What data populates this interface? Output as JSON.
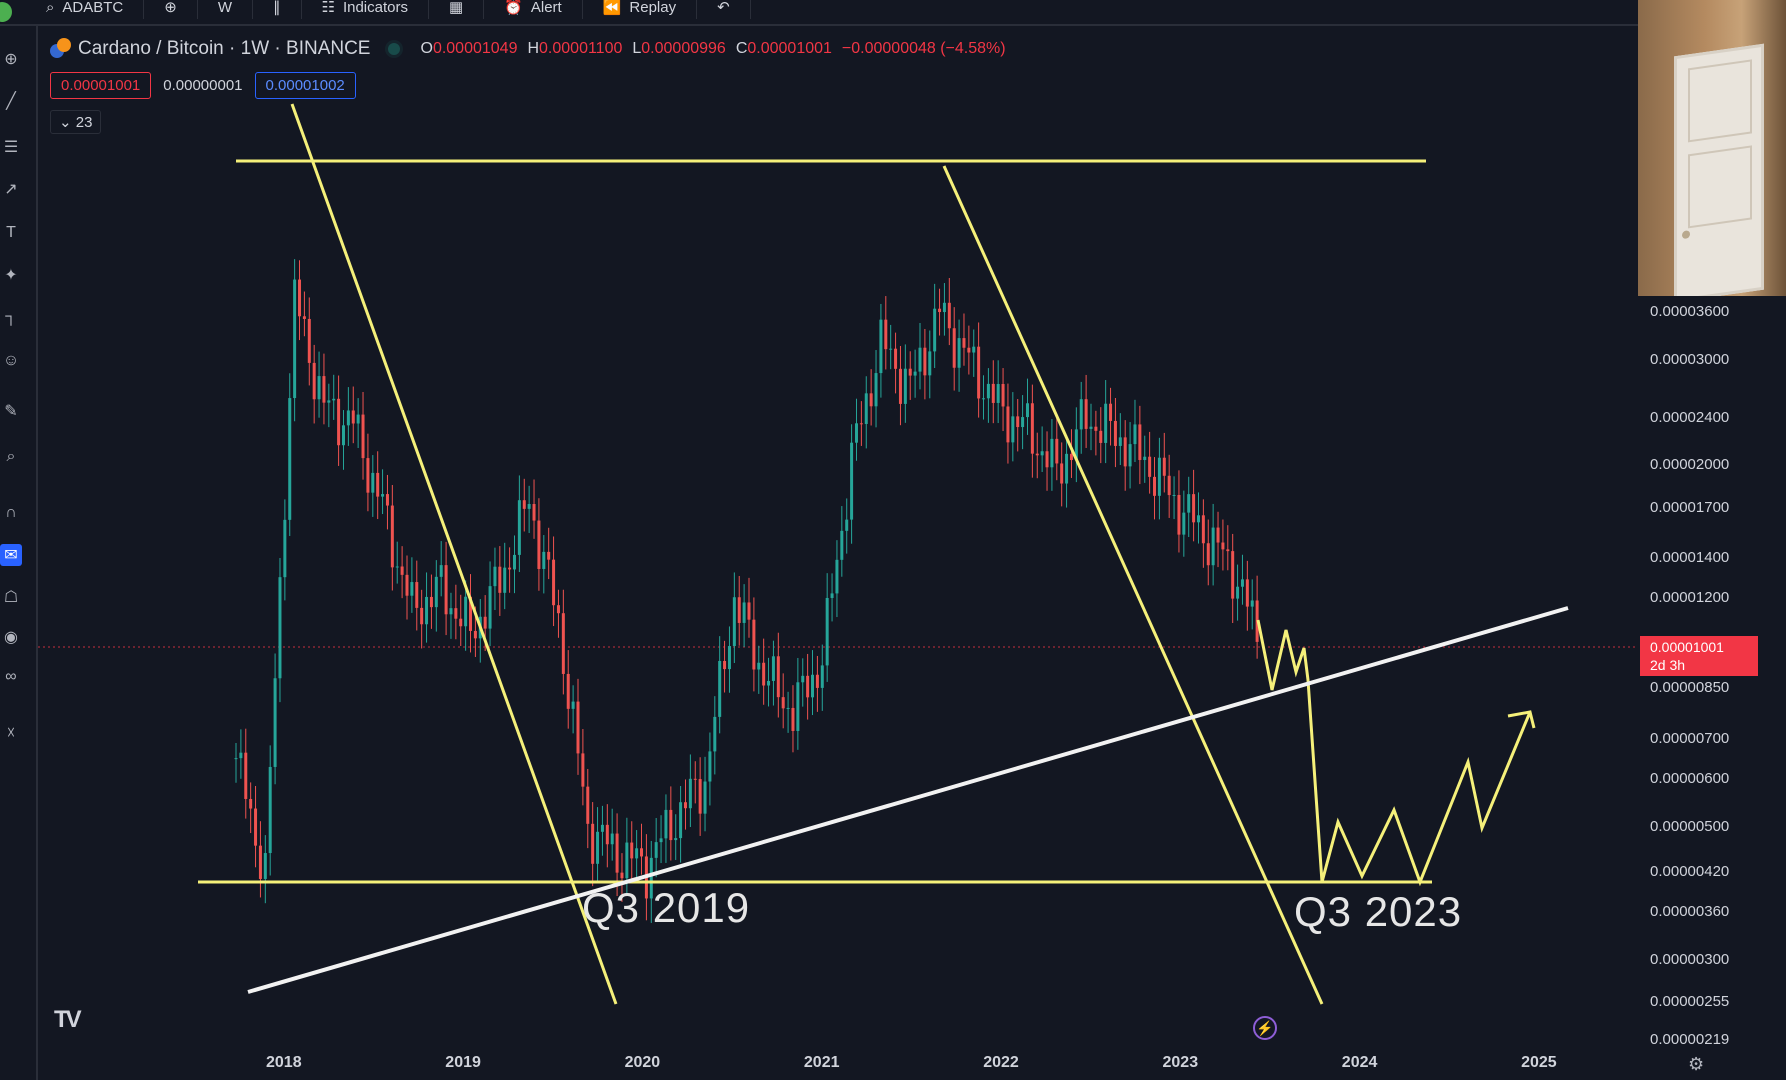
{
  "toolbar": {
    "symbol": "ADABTC",
    "interval": "W",
    "indicators_label": "Indicators",
    "alert_label": "Alert",
    "replay_label": "Replay"
  },
  "legend": {
    "title": "Cardano / Bitcoin · 1W · BINANCE",
    "open_key": "O",
    "open": "0.00001049",
    "high_key": "H",
    "high": "0.00001100",
    "low_key": "L",
    "low": "0.00000996",
    "close_key": "C",
    "close": "0.00001001",
    "change": "−0.00000048 (−4.58%)",
    "sell_price": "0.00001001",
    "spread": "0.00000001",
    "buy_price": "0.00001002",
    "collapsed_count": "23"
  },
  "price_axis": {
    "labels": [
      "0.00003600",
      "0.00003000",
      "0.00002400",
      "0.00002000",
      "0.00001700",
      "0.00001400",
      "0.00001200",
      "0.00000850",
      "0.00000700",
      "0.00000600",
      "0.00000500",
      "0.00000420",
      "0.00000360",
      "0.00000300",
      "0.00000255",
      "0.00000219"
    ],
    "current_price": "0.00001001",
    "countdown": "2d 3h"
  },
  "time_axis": {
    "labels": [
      "2018",
      "2019",
      "2020",
      "2021",
      "2022",
      "2023",
      "2024",
      "2025"
    ]
  },
  "annotations": {
    "q3_2019": "Q3 2019",
    "q3_2023": "Q3 2023"
  },
  "colors": {
    "background": "#131722",
    "up_candle": "#26a69a",
    "down_candle": "#ef5350",
    "drawing_yellow": "#f5f07a",
    "drawing_white": "#ffffff",
    "price_tag": "#f23645"
  },
  "chart_data": {
    "type": "candlestick",
    "title": "Cardano / Bitcoin · 1W · BINANCE",
    "scale": "log",
    "x": [
      "2017-10",
      "2017-12",
      "2018-01",
      "2018-03",
      "2018-05",
      "2018-07",
      "2018-09",
      "2018-11",
      "2019-01",
      "2019-03",
      "2019-05",
      "2019-07",
      "2019-09",
      "2019-11",
      "2020-01",
      "2020-03",
      "2020-05",
      "2020-07",
      "2020-09",
      "2020-11",
      "2021-01",
      "2021-03",
      "2021-05",
      "2021-07",
      "2021-09",
      "2021-11",
      "2022-01",
      "2022-03",
      "2022-05",
      "2022-07",
      "2022-09",
      "2022-11",
      "2023-01",
      "2023-03",
      "2023-05",
      "2023-06"
    ],
    "close": [
      6.5e-06,
      4.2e-06,
      3.8e-05,
      2.5e-05,
      2.35e-05,
      1.7e-05,
      1.15e-05,
      1.25e-05,
      1.05e-05,
      1.28e-05,
      1.75e-05,
      1.1e-05,
      5e-06,
      4.5e-06,
      4.3e-06,
      5.2e-06,
      6e-06,
      1.2e-05,
      9e-06,
      7.8e-06,
      9.5e-06,
      2.05e-05,
      3.2e-05,
      2.7e-05,
      3.6e-05,
      3e-05,
      2.5e-05,
      2.3e-05,
      1.95e-05,
      2.4e-05,
      2.25e-05,
      2.05e-05,
      1.75e-05,
      1.55e-05,
      1.35e-05,
      1e-05
    ],
    "ylim": [
      2.19e-06,
      3.8e-05
    ],
    "current_price": 1.001e-05,
    "x_tick_labels": [
      "2018",
      "2019",
      "2020",
      "2021",
      "2022",
      "2023",
      "2024",
      "2025"
    ]
  }
}
